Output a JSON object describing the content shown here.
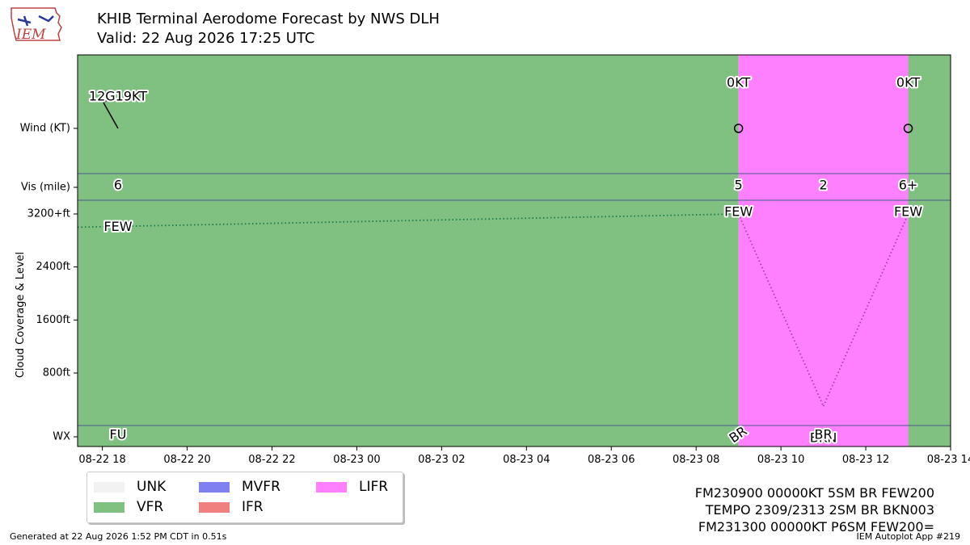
{
  "header": {
    "title": "KHIB Terminal Aerodome Forecast by NWS DLH",
    "valid": "Valid: 22 Aug 2026 17:25 UTC",
    "logo_text": "IEM"
  },
  "colors": {
    "UNK": "#f2f2f2",
    "VFR": "#80c080",
    "MVFR": "#8080f0",
    "IFR": "#f08080",
    "LIFR": "#ff80ff",
    "cloud_line_vfr": "#1a7a4a",
    "cloud_line_lifr": "#a040a0",
    "divider": "#4a5a8a"
  },
  "chart_data": {
    "type": "timeline",
    "x_axis": {
      "unit": "UTC time",
      "range": [
        "2026-08-22T17:25",
        "2026-08-23T14:00"
      ],
      "ticks": [
        {
          "t": "2026-08-22T18:00",
          "label": "08-22 18"
        },
        {
          "t": "2026-08-22T20:00",
          "label": "08-22 20"
        },
        {
          "t": "2026-08-22T22:00",
          "label": "08-22 22"
        },
        {
          "t": "2026-08-23T00:00",
          "label": "08-23 00"
        },
        {
          "t": "2026-08-23T02:00",
          "label": "08-23 02"
        },
        {
          "t": "2026-08-23T04:00",
          "label": "08-23 04"
        },
        {
          "t": "2026-08-23T06:00",
          "label": "08-23 06"
        },
        {
          "t": "2026-08-23T08:00",
          "label": "08-23 08"
        },
        {
          "t": "2026-08-23T10:00",
          "label": "08-23 10"
        },
        {
          "t": "2026-08-23T12:00",
          "label": "08-23 12"
        },
        {
          "t": "2026-08-23T14:00",
          "label": "08-23 14"
        }
      ]
    },
    "rows": {
      "wind": "Wind (KT)",
      "vis": "Vis (mile)",
      "wx": "WX"
    },
    "y_axis": {
      "label": "Cloud Coverage & Level",
      "ticks": [
        {
          "ft": 3200,
          "label": "3200+ft"
        },
        {
          "ft": 2400,
          "label": "2400ft"
        },
        {
          "ft": 1600,
          "label": "1600ft"
        },
        {
          "ft": 800,
          "label": "800ft"
        }
      ],
      "range_ft": [
        -800,
        3200
      ]
    },
    "categories": [
      {
        "start": "2026-08-22T17:25",
        "end": "2026-08-23T09:00",
        "category": "VFR"
      },
      {
        "start": "2026-08-23T09:00",
        "end": "2026-08-23T13:00",
        "category": "LIFR"
      },
      {
        "start": "2026-08-23T13:00",
        "end": "2026-08-23T14:00",
        "category": "VFR"
      }
    ],
    "wind": [
      {
        "t": "2026-08-22T17:25",
        "label": "12G19KT",
        "dir_deg": 120,
        "calm": false
      },
      {
        "t": "2026-08-23T09:00",
        "label": "0KT",
        "calm": true
      },
      {
        "t": "2026-08-23T13:00",
        "label": "0KT",
        "calm": true
      }
    ],
    "visibility": [
      {
        "t": "2026-08-22T17:25",
        "label": "6"
      },
      {
        "t": "2026-08-23T09:00",
        "label": "5"
      },
      {
        "t": "2026-08-23T11:00",
        "label": "2"
      },
      {
        "t": "2026-08-23T13:00",
        "label": "6+"
      }
    ],
    "clouds": [
      {
        "t": "2026-08-22T17:25",
        "cover": "FEW",
        "level_ft": 3000
      },
      {
        "t": "2026-08-23T09:00",
        "cover": "FEW",
        "level_ft": 3200
      },
      {
        "t": "2026-08-23T11:00",
        "cover": "BKN",
        "level_ft": 300
      },
      {
        "t": "2026-08-23T13:00",
        "cover": "FEW",
        "level_ft": 3200
      }
    ],
    "cloud_lines": [
      {
        "from": 0,
        "to": 1,
        "color_key": "cloud_line_vfr"
      },
      {
        "from": 1,
        "to": 2,
        "color_key": "cloud_line_lifr"
      },
      {
        "from": 2,
        "to": 3,
        "color_key": "cloud_line_lifr"
      }
    ],
    "weather": [
      {
        "t": "2026-08-22T17:25",
        "label": "FU",
        "rotated": false
      },
      {
        "t": "2026-08-23T09:00",
        "label": "BR",
        "rotated": true
      },
      {
        "t": "2026-08-23T11:00",
        "label": "BR",
        "rotated": false
      }
    ]
  },
  "legend": [
    {
      "key": "UNK",
      "label": "UNK"
    },
    {
      "key": "VFR",
      "label": "VFR"
    },
    {
      "key": "MVFR",
      "label": "MVFR"
    },
    {
      "key": "IFR",
      "label": "IFR"
    },
    {
      "key": "LIFR",
      "label": "LIFR"
    }
  ],
  "taf_text": [
    "FM230900 00000KT 5SM BR FEW200",
    "TEMPO 2309/2313 2SM BR BKN003",
    "FM231300 00000KT P6SM FEW200="
  ],
  "footer": {
    "generated": "Generated at 22 Aug 2026 1:52 PM CDT in 0.51s",
    "app": "IEM Autoplot App #219"
  }
}
